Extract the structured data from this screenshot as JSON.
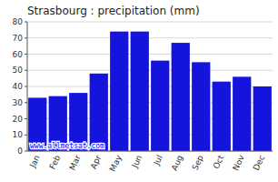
{
  "chart_data": {
    "type": "bar",
    "title": "Strasbourg : precipitation (mm)",
    "categories": [
      "Jan",
      "Feb",
      "Mar",
      "Apr",
      "May",
      "Jun",
      "Jul",
      "Aug",
      "Sep",
      "Oct",
      "Nov",
      "Dec"
    ],
    "values": [
      33,
      34,
      36,
      48,
      74,
      74,
      56,
      67,
      55,
      43,
      46,
      40
    ],
    "color": "#1414dd",
    "ylim": [
      0,
      80
    ],
    "yticks": [
      0,
      10,
      20,
      30,
      40,
      50,
      60,
      70,
      80
    ],
    "grid": true,
    "annotations": [
      "www.allmetsat.com"
    ]
  }
}
